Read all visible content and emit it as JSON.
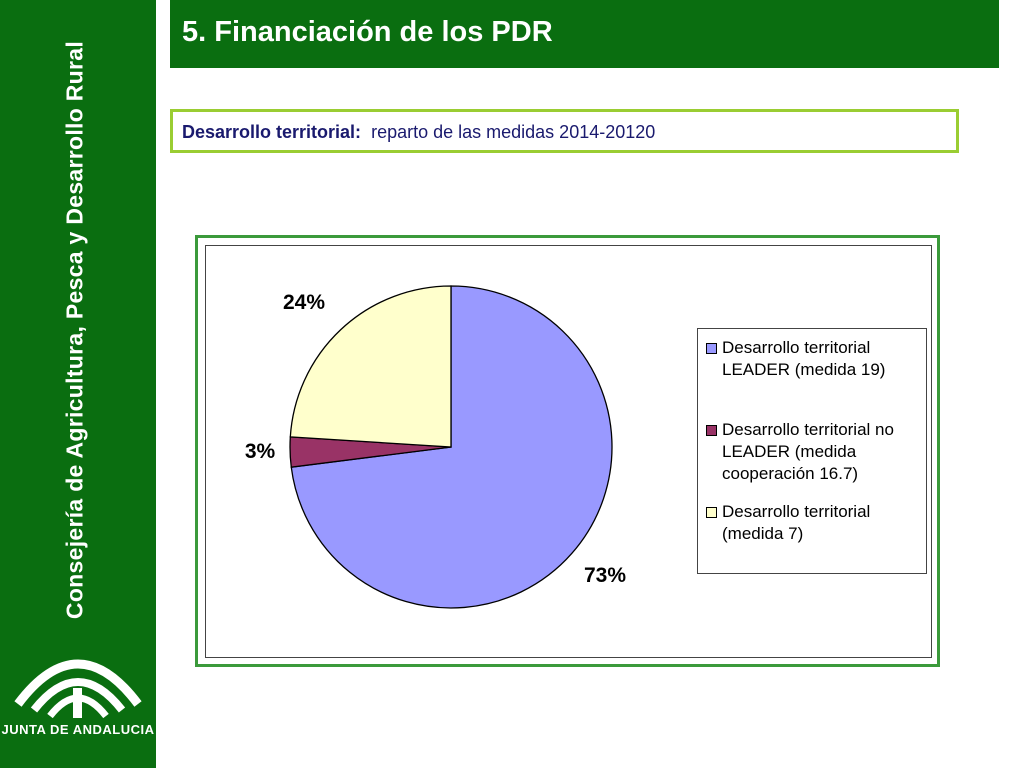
{
  "sidebar": {
    "vertical_text": "Consejería de Agricultura, Pesca y Desarrollo Rural",
    "logo_text": "JUNTA DE ANDALUCIA"
  },
  "header": {
    "title": "5. Financiación de los PDR"
  },
  "subtitle": {
    "bold": "Desarrollo territorial:",
    "rest": "reparto de las medidas 2014-20120"
  },
  "colors": {
    "green": "#0a6e10",
    "lime": "#9acd32"
  },
  "chart_data": {
    "type": "pie",
    "series": [
      {
        "name": "Desarrollo territorial LEADER (medida 19)",
        "value": 73,
        "label": "73%",
        "color": "#9999ff"
      },
      {
        "name": "Desarrollo territorial no LEADER (medida cooperación 16.7)",
        "value": 3,
        "label": "3%",
        "color": "#993366"
      },
      {
        "name": "Desarrollo territorial (medida 7)",
        "value": 24,
        "label": "24%",
        "color": "#ffffcc"
      }
    ],
    "legend_position": "right"
  }
}
